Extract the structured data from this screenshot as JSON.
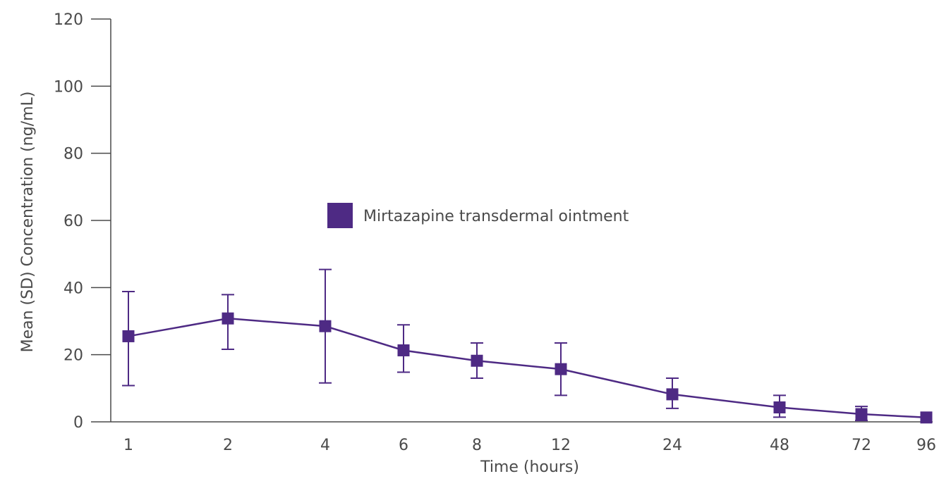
{
  "chart_data": {
    "type": "line",
    "title": "",
    "xlabel": "Time (hours)",
    "ylabel": "Mean (SD) Concentration (ng/mL)",
    "ylim": [
      0,
      120
    ],
    "yticks": [
      0,
      20,
      40,
      60,
      80,
      100,
      120
    ],
    "categories": [
      "1",
      "2",
      "4",
      "6",
      "8",
      "12",
      "24",
      "48",
      "72",
      "96"
    ],
    "legend": {
      "position": "center",
      "entries": [
        "Mirtazapine transdermal ointment"
      ]
    },
    "grid": false,
    "series": [
      {
        "name": "Mirtazapine transdermal ointment",
        "color": "#4e2a84",
        "marker": "square",
        "values": [
          25.5,
          30.8,
          28.5,
          21.3,
          18.2,
          15.7,
          8.2,
          4.3,
          2.3,
          1.3
        ],
        "sd_upper": [
          38.8,
          37.9,
          45.4,
          28.9,
          23.5,
          23.5,
          13.0,
          7.9,
          4.6,
          1.3
        ],
        "sd_lower": [
          10.8,
          21.6,
          11.6,
          14.8,
          13.0,
          7.9,
          4.0,
          1.4,
          0.4,
          1.3
        ]
      }
    ]
  }
}
